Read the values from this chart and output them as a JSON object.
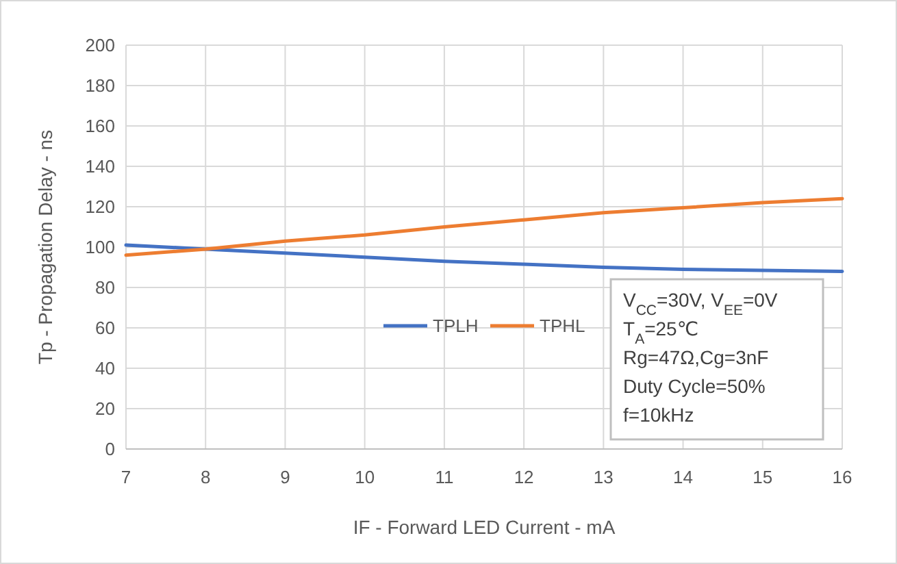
{
  "chart_data": {
    "type": "line",
    "xlabel": "IF - Forward LED Current - mA",
    "ylabel": "Tp - Propagation Delay - ns",
    "x": [
      7,
      8,
      9,
      10,
      11,
      12,
      13,
      14,
      15,
      16
    ],
    "series": [
      {
        "name": "TPLH",
        "color": "#4472c4",
        "values": [
          101,
          99,
          97,
          95,
          93,
          91.5,
          90,
          89,
          88.5,
          88
        ]
      },
      {
        "name": "TPHL",
        "color": "#ed7d31",
        "values": [
          96,
          99,
          103,
          106,
          110,
          113.5,
          117,
          119.5,
          122,
          124
        ]
      }
    ],
    "xlim": [
      7,
      16
    ],
    "xticks": [
      7,
      8,
      9,
      10,
      11,
      12,
      13,
      14,
      15,
      16
    ],
    "ylim": [
      0,
      200
    ],
    "yticks": [
      0,
      20,
      40,
      60,
      80,
      100,
      120,
      140,
      160,
      180,
      200
    ],
    "grid": true,
    "legend": "center",
    "marker": "none",
    "line_style": "solid",
    "annotations": [
      "V$_{CC}$=30V, V$_{EE}$=0V",
      "T$_{A}$=25℃",
      "Rg=47Ω,Cg=3nF",
      "Duty Cycle=50%",
      "f=10kHz"
    ]
  }
}
